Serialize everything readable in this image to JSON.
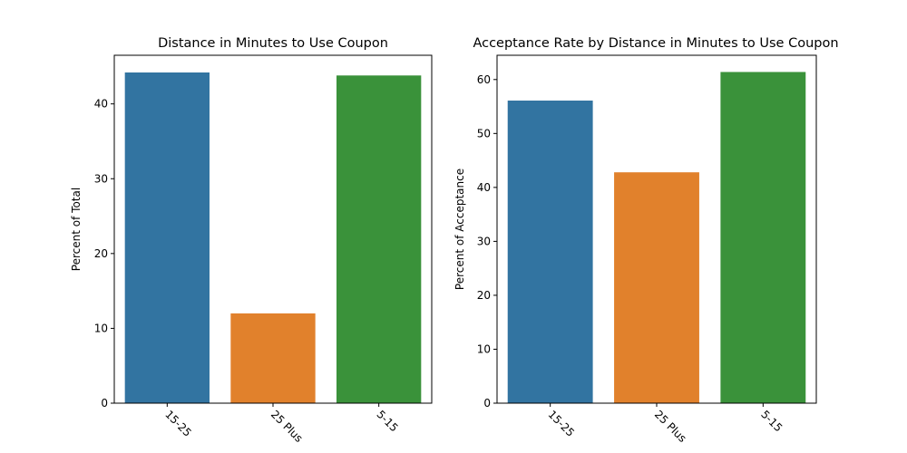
{
  "chart_data": [
    {
      "type": "bar",
      "title": "Distance in Minutes to Use Coupon",
      "xlabel": "",
      "ylabel": "Percent of Total",
      "categories": [
        "15-25",
        "25 Plus",
        "5-15"
      ],
      "values": [
        44.2,
        12.0,
        43.8
      ],
      "colors": [
        "#3274a1",
        "#e1812c",
        "#3a923a"
      ],
      "ylim": [
        0,
        46.5
      ],
      "yticks": [
        0,
        10,
        20,
        30,
        40
      ],
      "grid": false,
      "xtick_rotation": 45
    },
    {
      "type": "bar",
      "title": "Acceptance Rate by Distance in Minutes to Use Coupon",
      "xlabel": "",
      "ylabel": "Percent of Acceptance",
      "categories": [
        "15-25",
        "25 Plus",
        "5-15"
      ],
      "values": [
        56.1,
        42.8,
        61.4
      ],
      "colors": [
        "#3274a1",
        "#e1812c",
        "#3a923a"
      ],
      "ylim": [
        0,
        64.5
      ],
      "yticks": [
        0,
        10,
        20,
        30,
        40,
        50,
        60
      ],
      "grid": false,
      "xtick_rotation": 45
    }
  ]
}
